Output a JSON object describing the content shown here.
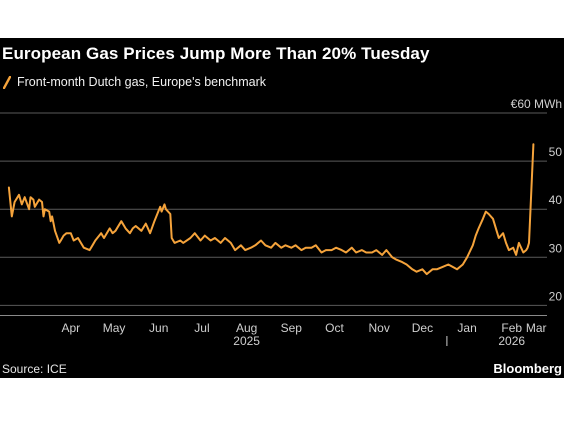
{
  "title": "European Gas Prices Jump More Than 20% Tuesday",
  "source": "Source: ICE",
  "brand": "Bloomberg",
  "colors": {
    "background": "#000000",
    "series": "#f5a33b",
    "grid": "#5a5a5a",
    "text": "#ffffff",
    "axis_text": "#cfcfcf"
  },
  "chart_data": {
    "type": "line",
    "title": "European Gas Prices Jump More Than 20% Tuesday",
    "series": [
      {
        "name": "Front-month Dutch gas, Europe's benchmark",
        "color": "#f5a33b",
        "points": [
          [
            "2025-03-03",
            44.5
          ],
          [
            "2025-03-05",
            38.5
          ],
          [
            "2025-03-07",
            41.5
          ],
          [
            "2025-03-10",
            43.0
          ],
          [
            "2025-03-12",
            41.0
          ],
          [
            "2025-03-14",
            42.5
          ],
          [
            "2025-03-17",
            40.0
          ],
          [
            "2025-03-18",
            42.5
          ],
          [
            "2025-03-20",
            42.0
          ],
          [
            "2025-03-21",
            40.5
          ],
          [
            "2025-03-24",
            42.0
          ],
          [
            "2025-03-26",
            41.5
          ],
          [
            "2025-03-27",
            38.5
          ],
          [
            "2025-03-28",
            40.0
          ],
          [
            "2025-03-31",
            39.5
          ],
          [
            "2025-04-01",
            37.5
          ],
          [
            "2025-04-02",
            38.5
          ],
          [
            "2025-04-04",
            35.5
          ],
          [
            "2025-04-07",
            33.0
          ],
          [
            "2025-04-08",
            33.5
          ],
          [
            "2025-04-10",
            34.5
          ],
          [
            "2025-04-12",
            35.0
          ],
          [
            "2025-04-15",
            35.0
          ],
          [
            "2025-04-17",
            33.5
          ],
          [
            "2025-04-20",
            34.0
          ],
          [
            "2025-04-22",
            33.0
          ],
          [
            "2025-04-24",
            32.0
          ],
          [
            "2025-04-28",
            31.5
          ],
          [
            "2025-04-30",
            32.5
          ],
          [
            "2025-05-02",
            33.5
          ],
          [
            "2025-05-06",
            35.0
          ],
          [
            "2025-05-08",
            34.0
          ],
          [
            "2025-05-12",
            36.0
          ],
          [
            "2025-05-14",
            35.0
          ],
          [
            "2025-05-16",
            35.5
          ],
          [
            "2025-05-20",
            37.5
          ],
          [
            "2025-05-23",
            36.0
          ],
          [
            "2025-05-26",
            35.0
          ],
          [
            "2025-05-28",
            36.0
          ],
          [
            "2025-05-30",
            36.5
          ],
          [
            "2025-06-03",
            35.5
          ],
          [
            "2025-06-06",
            37.0
          ],
          [
            "2025-06-09",
            35.0
          ],
          [
            "2025-06-12",
            37.5
          ],
          [
            "2025-06-16",
            40.5
          ],
          [
            "2025-06-17",
            39.5
          ],
          [
            "2025-06-19",
            41.0
          ],
          [
            "2025-06-20",
            40.0
          ],
          [
            "2025-06-23",
            39.0
          ],
          [
            "2025-06-24",
            34.0
          ],
          [
            "2025-06-26",
            33.0
          ],
          [
            "2025-06-30",
            33.5
          ],
          [
            "2025-07-02",
            33.0
          ],
          [
            "2025-07-07",
            34.0
          ],
          [
            "2025-07-10",
            35.0
          ],
          [
            "2025-07-14",
            33.5
          ],
          [
            "2025-07-17",
            34.5
          ],
          [
            "2025-07-21",
            33.5
          ],
          [
            "2025-07-24",
            34.0
          ],
          [
            "2025-07-28",
            33.0
          ],
          [
            "2025-07-31",
            34.0
          ],
          [
            "2025-08-04",
            33.0
          ],
          [
            "2025-08-07",
            31.5
          ],
          [
            "2025-08-11",
            32.5
          ],
          [
            "2025-08-14",
            31.5
          ],
          [
            "2025-08-18",
            32.0
          ],
          [
            "2025-08-21",
            32.5
          ],
          [
            "2025-08-25",
            33.5
          ],
          [
            "2025-08-28",
            32.5
          ],
          [
            "2025-09-01",
            32.0
          ],
          [
            "2025-09-04",
            33.0
          ],
          [
            "2025-09-08",
            32.0
          ],
          [
            "2025-09-11",
            32.5
          ],
          [
            "2025-09-15",
            32.0
          ],
          [
            "2025-09-18",
            32.5
          ],
          [
            "2025-09-22",
            31.5
          ],
          [
            "2025-09-25",
            32.0
          ],
          [
            "2025-09-29",
            32.0
          ],
          [
            "2025-10-02",
            32.5
          ],
          [
            "2025-10-06",
            31.0
          ],
          [
            "2025-10-09",
            31.5
          ],
          [
            "2025-10-13",
            31.5
          ],
          [
            "2025-10-16",
            32.0
          ],
          [
            "2025-10-20",
            31.5
          ],
          [
            "2025-10-23",
            31.0
          ],
          [
            "2025-10-27",
            32.0
          ],
          [
            "2025-10-30",
            31.0
          ],
          [
            "2025-11-03",
            31.5
          ],
          [
            "2025-11-06",
            31.0
          ],
          [
            "2025-11-10",
            31.0
          ],
          [
            "2025-11-13",
            31.5
          ],
          [
            "2025-11-17",
            30.5
          ],
          [
            "2025-11-20",
            31.5
          ],
          [
            "2025-11-24",
            30.0
          ],
          [
            "2025-11-27",
            29.5
          ],
          [
            "2025-12-01",
            29.0
          ],
          [
            "2025-12-04",
            28.5
          ],
          [
            "2025-12-08",
            27.5
          ],
          [
            "2025-12-11",
            27.0
          ],
          [
            "2025-12-15",
            27.5
          ],
          [
            "2025-12-18",
            26.5
          ],
          [
            "2025-12-22",
            27.5
          ],
          [
            "2025-12-25",
            27.5
          ],
          [
            "2025-12-29",
            28.0
          ],
          [
            "2026-01-02",
            28.5
          ],
          [
            "2026-01-05",
            28.0
          ],
          [
            "2026-01-08",
            27.5
          ],
          [
            "2026-01-12",
            28.5
          ],
          [
            "2026-01-15",
            30.0
          ],
          [
            "2026-01-19",
            32.5
          ],
          [
            "2026-01-21",
            34.5
          ],
          [
            "2026-01-23",
            36.0
          ],
          [
            "2026-01-26",
            38.0
          ],
          [
            "2026-01-28",
            39.5
          ],
          [
            "2026-01-30",
            39.0
          ],
          [
            "2026-02-02",
            38.0
          ],
          [
            "2026-02-04",
            36.0
          ],
          [
            "2026-02-06",
            34.0
          ],
          [
            "2026-02-09",
            35.0
          ],
          [
            "2026-02-11",
            33.0
          ],
          [
            "2026-02-13",
            31.5
          ],
          [
            "2026-02-16",
            32.0
          ],
          [
            "2026-02-18",
            30.5
          ],
          [
            "2026-02-20",
            33.0
          ],
          [
            "2026-02-23",
            31.0
          ],
          [
            "2026-02-25",
            31.5
          ],
          [
            "2026-02-26",
            32.0
          ],
          [
            "2026-02-27",
            33.0
          ],
          [
            "2026-02-28",
            40.0
          ],
          [
            "2026-03-02",
            53.5
          ]
        ]
      }
    ],
    "y_axis": {
      "unit": "€ MWh",
      "ticks": [
        {
          "value": 60,
          "label": "€60 MWh"
        },
        {
          "value": 50,
          "label": "50"
        },
        {
          "value": 40,
          "label": "40"
        },
        {
          "value": 30,
          "label": "30"
        },
        {
          "value": 20,
          "label": "20"
        }
      ],
      "range": [
        18,
        60
      ],
      "gridlines": true
    },
    "x_axis": {
      "range": [
        "2025-03-01",
        "2026-03-08"
      ],
      "ticks": [
        {
          "date": "2025-04-15",
          "label": "Apr"
        },
        {
          "date": "2025-05-15",
          "label": "May"
        },
        {
          "date": "2025-06-15",
          "label": "Jun"
        },
        {
          "date": "2025-07-15",
          "label": "Jul"
        },
        {
          "date": "2025-08-15",
          "label": "Aug"
        },
        {
          "date": "2025-09-15",
          "label": "Sep"
        },
        {
          "date": "2025-10-15",
          "label": "Oct"
        },
        {
          "date": "2025-11-15",
          "label": "Nov"
        },
        {
          "date": "2025-12-15",
          "label": "Dec"
        },
        {
          "date": "2026-01-15",
          "label": "Jan"
        },
        {
          "date": "2026-02-15",
          "label": "Feb"
        },
        {
          "date": "2026-03-04",
          "label": "Mar"
        }
      ],
      "year_labels": [
        {
          "date": "2025-08-15",
          "label": "2025"
        },
        {
          "date": "2026-02-15",
          "label": "2026"
        }
      ],
      "year_divider": "2026-01-01"
    }
  }
}
